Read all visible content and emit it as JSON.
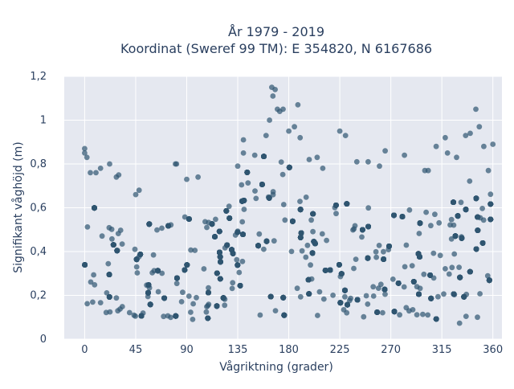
{
  "chart_data": {
    "type": "scatter",
    "title_lines": [
      "År 1979 - 2019",
      "Koordinat (Sweref 99 TM): E 354820, N 6167686"
    ],
    "xlabel": "Vågriktning (grader)",
    "ylabel": "Signifikant våghöjd (m)",
    "xlim": [
      -18,
      368
    ],
    "ylim": [
      0,
      1.2
    ],
    "xticks": [
      0,
      45,
      90,
      135,
      180,
      225,
      270,
      315,
      360
    ],
    "xtick_labels": [
      "0",
      "45",
      "90",
      "135",
      "180",
      "225",
      "270",
      "315",
      "360"
    ],
    "yticks": [
      0,
      0.2,
      0.4,
      0.6,
      0.8,
      1,
      1.2
    ],
    "ytick_labels": [
      "0",
      "0,2",
      "0,4",
      "0,6",
      "0,8",
      "1",
      "1,2"
    ],
    "grid": true,
    "legend": "none",
    "marker_color": "#2f5670",
    "background_color": "#e5e8f0",
    "envelope": {
      "x": [
        0,
        10,
        20,
        30,
        45,
        60,
        75,
        90,
        105,
        120,
        135,
        150,
        160,
        165,
        170,
        180,
        195,
        210,
        225,
        240,
        255,
        270,
        285,
        300,
        315,
        330,
        340,
        350,
        360
      ],
      "y_low": [
        0.12,
        0.1,
        0.1,
        0.1,
        0.1,
        0.1,
        0.1,
        0.09,
        0.09,
        0.1,
        0.1,
        0.1,
        0.1,
        0.1,
        0.1,
        0.1,
        0.1,
        0.1,
        0.1,
        0.1,
        0.1,
        0.1,
        0.1,
        0.09,
        0.07,
        0.07,
        0.09,
        0.1,
        0.12
      ],
      "y_high": [
        0.64,
        0.62,
        0.6,
        0.55,
        0.52,
        0.53,
        0.55,
        0.57,
        0.6,
        0.64,
        0.72,
        0.8,
        0.9,
        0.95,
        0.97,
        0.8,
        0.68,
        0.64,
        0.62,
        0.62,
        0.6,
        0.58,
        0.6,
        0.63,
        0.66,
        0.72,
        0.78,
        0.75,
        0.66
      ]
    },
    "outliers": [
      [
        0,
        0.87
      ],
      [
        0,
        0.85
      ],
      [
        2,
        0.83
      ],
      [
        5,
        0.76
      ],
      [
        10,
        0.76
      ],
      [
        14,
        0.78
      ],
      [
        22,
        0.8
      ],
      [
        28,
        0.74
      ],
      [
        30,
        0.75
      ],
      [
        45,
        0.66
      ],
      [
        48,
        0.68
      ],
      [
        80,
        0.8
      ],
      [
        81,
        0.8
      ],
      [
        90,
        0.73
      ],
      [
        100,
        0.74
      ],
      [
        135,
        0.79
      ],
      [
        140,
        0.85
      ],
      [
        140,
        0.91
      ],
      [
        150,
        0.84
      ],
      [
        160,
        0.93
      ],
      [
        163,
        1.0
      ],
      [
        165,
        1.15
      ],
      [
        166,
        1.11
      ],
      [
        168,
        1.14
      ],
      [
        170,
        1.05
      ],
      [
        172,
        1.04
      ],
      [
        175,
        1.05
      ],
      [
        180,
        0.95
      ],
      [
        185,
        0.97
      ],
      [
        188,
        1.07
      ],
      [
        190,
        0.92
      ],
      [
        198,
        0.82
      ],
      [
        205,
        0.83
      ],
      [
        210,
        0.78
      ],
      [
        225,
        0.95
      ],
      [
        230,
        0.93
      ],
      [
        240,
        0.81
      ],
      [
        250,
        0.81
      ],
      [
        260,
        0.79
      ],
      [
        265,
        0.86
      ],
      [
        282,
        0.84
      ],
      [
        300,
        0.77
      ],
      [
        303,
        0.77
      ],
      [
        310,
        0.88
      ],
      [
        318,
        0.92
      ],
      [
        320,
        0.85
      ],
      [
        328,
        0.83
      ],
      [
        336,
        0.93
      ],
      [
        340,
        0.94
      ],
      [
        345,
        1.05
      ],
      [
        348,
        0.97
      ],
      [
        352,
        0.88
      ],
      [
        356,
        0.77
      ],
      [
        360,
        0.89
      ]
    ]
  }
}
